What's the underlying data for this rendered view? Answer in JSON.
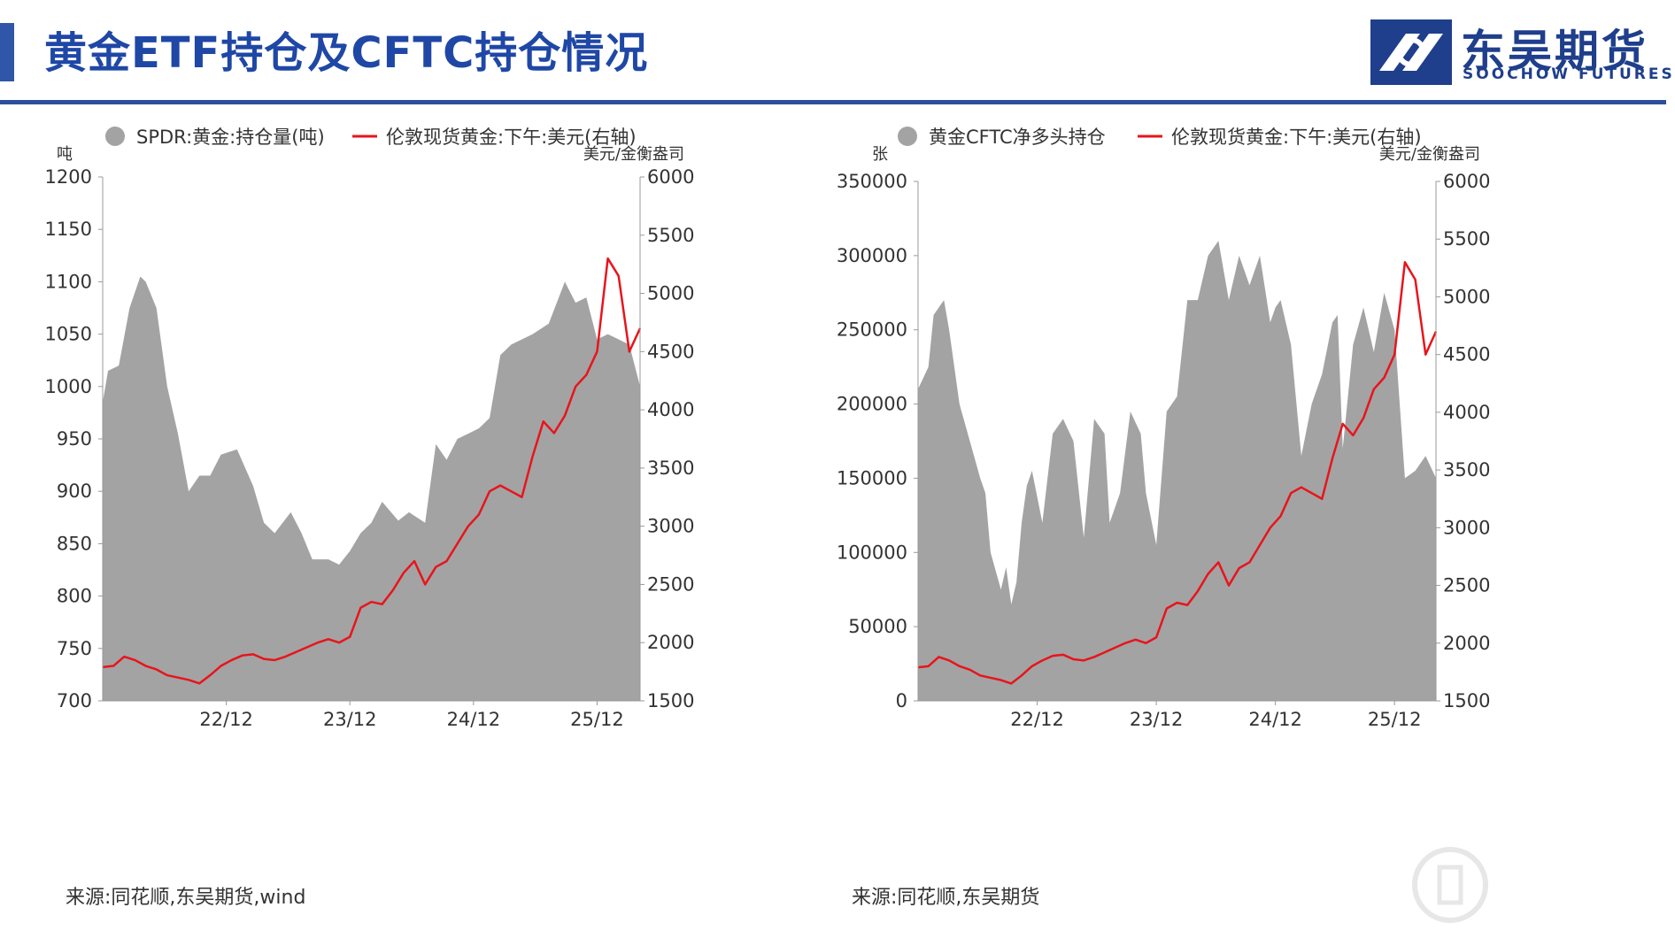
{
  "header": {
    "title": "黄金ETF持仓及CFTC持仓情况",
    "accent_color": "#2f56a8",
    "logo_cn": "东吴期货",
    "logo_en": "SOOCHOW FUTURES"
  },
  "colors": {
    "area": "#a3a3a3",
    "line": "#e8141c",
    "text": "#333333"
  },
  "chart_data": [
    {
      "type": "area",
      "legend": [
        "SPDR:黄金:持仓量(吨)",
        "伦敦现货黄金:下午:美元(右轴)"
      ],
      "left_unit": "吨",
      "right_unit": "美元/金衡盎司",
      "left_ylim": [
        700,
        1200
      ],
      "left_ticks": [
        "1200",
        "1150",
        "1100",
        "1050",
        "1000",
        "950",
        "900",
        "850",
        "800",
        "750",
        "700"
      ],
      "right_ylim": [
        1500,
        6000
      ],
      "right_ticks": [
        "6000",
        "5500",
        "5000",
        "4500",
        "4000",
        "3500",
        "3000",
        "2500",
        "2000",
        "1500"
      ],
      "x_ticks": [
        "22/12",
        "23/12",
        "24/12",
        "25/12"
      ],
      "x_tick_pos": [
        0.23,
        0.46,
        0.69,
        0.92
      ],
      "series": [
        {
          "name": "SPDR:黄金:持仓量(吨)",
          "axis": "left",
          "x": [
            0,
            0.01,
            0.03,
            0.05,
            0.07,
            0.08,
            0.1,
            0.12,
            0.14,
            0.16,
            0.18,
            0.2,
            0.22,
            0.25,
            0.28,
            0.3,
            0.32,
            0.35,
            0.37,
            0.39,
            0.42,
            0.44,
            0.46,
            0.48,
            0.5,
            0.52,
            0.55,
            0.57,
            0.6,
            0.62,
            0.64,
            0.66,
            0.68,
            0.7,
            0.72,
            0.74,
            0.76,
            0.78,
            0.8,
            0.83,
            0.86,
            0.88,
            0.9,
            0.92,
            0.94,
            0.96,
            0.98,
            1.0
          ],
          "y": [
            985,
            1015,
            1020,
            1075,
            1105,
            1100,
            1075,
            1000,
            955,
            900,
            915,
            915,
            935,
            940,
            905,
            870,
            860,
            880,
            860,
            835,
            835,
            830,
            843,
            860,
            870,
            890,
            872,
            880,
            870,
            945,
            930,
            950,
            955,
            960,
            970,
            1030,
            1040,
            1045,
            1050,
            1060,
            1100,
            1080,
            1085,
            1045,
            1050,
            1045,
            1040,
            1000
          ]
        },
        {
          "name": "伦敦现货黄金:下午:美元(右轴)",
          "axis": "right",
          "x": [
            0,
            0.02,
            0.04,
            0.06,
            0.08,
            0.1,
            0.12,
            0.14,
            0.16,
            0.18,
            0.2,
            0.22,
            0.24,
            0.26,
            0.28,
            0.3,
            0.32,
            0.34,
            0.36,
            0.38,
            0.4,
            0.42,
            0.44,
            0.46,
            0.48,
            0.5,
            0.52,
            0.54,
            0.56,
            0.58,
            0.6,
            0.62,
            0.64,
            0.66,
            0.68,
            0.7,
            0.72,
            0.74,
            0.76,
            0.78,
            0.8,
            0.82,
            0.84,
            0.86,
            0.88,
            0.9,
            0.92,
            0.94,
            0.96,
            0.98,
            1.0
          ],
          "y": [
            1790,
            1800,
            1880,
            1850,
            1800,
            1770,
            1720,
            1700,
            1680,
            1650,
            1720,
            1800,
            1850,
            1890,
            1900,
            1860,
            1850,
            1880,
            1920,
            1960,
            2000,
            2030,
            2000,
            2050,
            2300,
            2350,
            2330,
            2450,
            2600,
            2700,
            2500,
            2650,
            2700,
            2850,
            3000,
            3100,
            3300,
            3350,
            3300,
            3250,
            3600,
            3900,
            3800,
            3950,
            4200,
            4300,
            4500,
            5300,
            5150,
            4500,
            4700
          ]
        }
      ]
    },
    {
      "type": "area",
      "legend": [
        "黄金CFTC净多头持仓",
        "伦敦现货黄金:下午:美元(右轴)"
      ],
      "left_unit": "张",
      "right_unit": "美元/金衡盎司",
      "left_ylim": [
        0,
        350000
      ],
      "left_ticks": [
        "350000",
        "300000",
        "250000",
        "200000",
        "150000",
        "100000",
        "50000",
        "0"
      ],
      "right_ylim": [
        1500,
        6000
      ],
      "right_ticks": [
        "6000",
        "5500",
        "5000",
        "4500",
        "4000",
        "3500",
        "3000",
        "2500",
        "2000",
        "1500"
      ],
      "x_ticks": [
        "22/12",
        "23/12",
        "24/12",
        "25/12"
      ],
      "x_tick_pos": [
        0.23,
        0.46,
        0.69,
        0.92
      ],
      "series": [
        {
          "name": "黄金CFTC净多头持仓",
          "axis": "left",
          "x": [
            0,
            0.02,
            0.03,
            0.05,
            0.06,
            0.08,
            0.1,
            0.12,
            0.13,
            0.14,
            0.16,
            0.17,
            0.18,
            0.19,
            0.2,
            0.21,
            0.22,
            0.24,
            0.26,
            0.28,
            0.3,
            0.32,
            0.34,
            0.36,
            0.37,
            0.39,
            0.41,
            0.43,
            0.44,
            0.46,
            0.48,
            0.5,
            0.52,
            0.54,
            0.56,
            0.58,
            0.6,
            0.62,
            0.64,
            0.66,
            0.68,
            0.69,
            0.7,
            0.72,
            0.74,
            0.76,
            0.78,
            0.8,
            0.81,
            0.82,
            0.84,
            0.86,
            0.88,
            0.9,
            0.92,
            0.94,
            0.96,
            0.98,
            1.0
          ],
          "y": [
            210000,
            225000,
            260000,
            270000,
            250000,
            200000,
            175000,
            150000,
            140000,
            100000,
            75000,
            90000,
            65000,
            80000,
            120000,
            145000,
            155000,
            120000,
            180000,
            190000,
            175000,
            110000,
            190000,
            180000,
            120000,
            140000,
            195000,
            180000,
            140000,
            105000,
            195000,
            205000,
            270000,
            270000,
            300000,
            310000,
            270000,
            300000,
            280000,
            300000,
            255000,
            265000,
            270000,
            240000,
            165000,
            200000,
            220000,
            255000,
            260000,
            170000,
            240000,
            265000,
            235000,
            275000,
            250000,
            150000,
            155000,
            165000,
            150000
          ]
        },
        {
          "name": "伦敦现货黄金:下午:美元(右轴)",
          "axis": "right",
          "x": [
            0,
            0.02,
            0.04,
            0.06,
            0.08,
            0.1,
            0.12,
            0.14,
            0.16,
            0.18,
            0.2,
            0.22,
            0.24,
            0.26,
            0.28,
            0.3,
            0.32,
            0.34,
            0.36,
            0.38,
            0.4,
            0.42,
            0.44,
            0.46,
            0.48,
            0.5,
            0.52,
            0.54,
            0.56,
            0.58,
            0.6,
            0.62,
            0.64,
            0.66,
            0.68,
            0.7,
            0.72,
            0.74,
            0.76,
            0.78,
            0.8,
            0.82,
            0.84,
            0.86,
            0.88,
            0.9,
            0.92,
            0.94,
            0.96,
            0.98,
            1.0
          ],
          "y": [
            1790,
            1800,
            1880,
            1850,
            1800,
            1770,
            1720,
            1700,
            1680,
            1650,
            1720,
            1800,
            1850,
            1890,
            1900,
            1860,
            1850,
            1880,
            1920,
            1960,
            2000,
            2030,
            2000,
            2050,
            2300,
            2350,
            2330,
            2450,
            2600,
            2700,
            2500,
            2650,
            2700,
            2850,
            3000,
            3100,
            3300,
            3350,
            3300,
            3250,
            3600,
            3900,
            3800,
            3950,
            4200,
            4300,
            4500,
            5300,
            5150,
            4500,
            4700
          ]
        }
      ]
    }
  ],
  "sources": [
    "来源:同花顺,东吴期货,wind",
    "来源:同花顺,东吴期货"
  ]
}
